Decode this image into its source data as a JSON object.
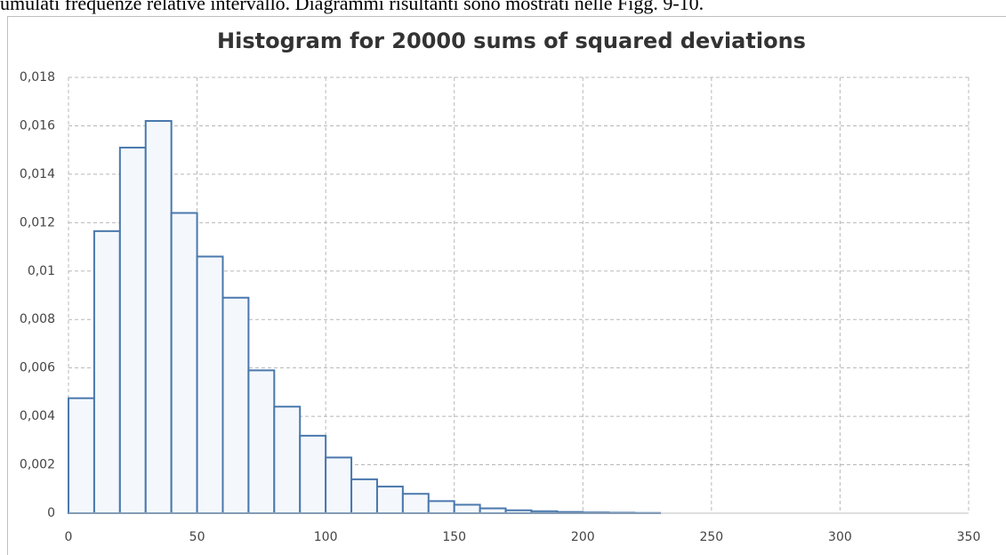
{
  "page_text": "umulati frequenze relative intervallo. Diagrammi risultanti sono mostrati nelle Figg. 9-10.",
  "chart_data": {
    "type": "histogram",
    "title": "Histogram for 20000 sums of squared deviations",
    "bins": [
      0,
      10,
      20,
      30,
      40,
      50,
      60,
      70,
      80,
      90,
      100,
      110,
      120,
      130,
      140,
      150,
      160,
      170,
      180,
      190,
      200,
      210,
      220,
      230,
      240,
      250,
      260,
      270,
      280,
      290,
      300,
      310,
      320,
      330,
      340
    ],
    "values": [
      0.00475,
      0.01165,
      0.0151,
      0.0162,
      0.0124,
      0.0106,
      0.0089,
      0.0059,
      0.0044,
      0.0032,
      0.0023,
      0.0014,
      0.0011,
      0.0008,
      0.0005,
      0.00035,
      0.0002,
      0.00012,
      8e-05,
      5e-05,
      3e-05,
      2e-05,
      1e-05,
      0,
      0,
      0,
      0,
      0,
      0,
      0,
      0,
      0,
      0,
      0
    ],
    "color": "#4a78ad",
    "xlim": [
      0,
      350
    ],
    "xticks": [
      0,
      50,
      100,
      150,
      200,
      250,
      300,
      350
    ],
    "ylim": [
      0,
      0.018
    ],
    "yticks": [
      0,
      {
        "value": 0.002,
        "label": "0,002"
      },
      {
        "value": 0.004,
        "label": "0,004"
      },
      {
        "value": 0.006,
        "label": "0,006"
      },
      {
        "value": 0.008,
        "label": "0,008"
      },
      {
        "value": 0.01,
        "label": "0,01"
      },
      {
        "value": 0.012,
        "label": "0,012"
      },
      {
        "value": 0.014,
        "label": "0,014"
      },
      {
        "value": 0.016,
        "label": "0,016"
      },
      {
        "value": 0.018,
        "label": "0,018"
      }
    ],
    "grid": true
  }
}
